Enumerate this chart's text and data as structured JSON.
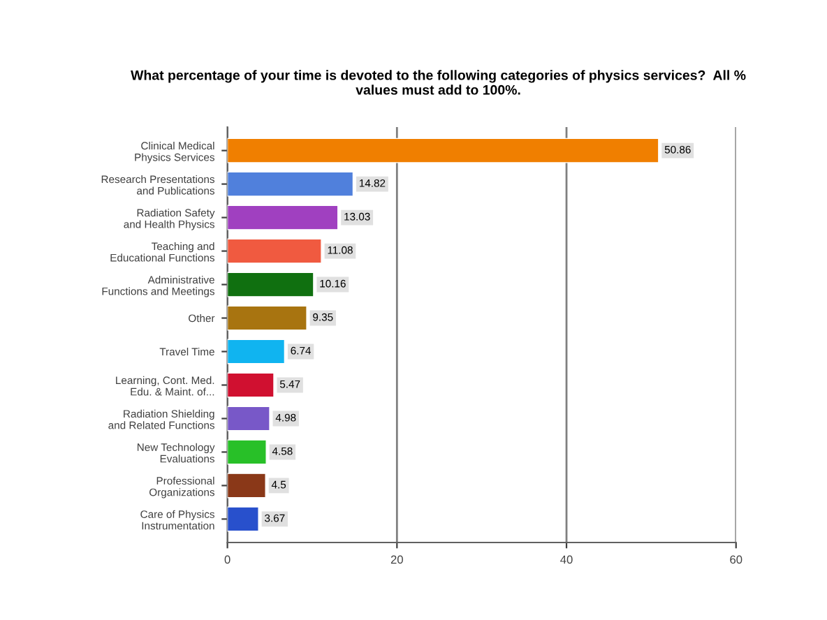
{
  "chart_data": {
    "type": "bar",
    "orientation": "horizontal",
    "title": "What percentage of your time is devoted to the following categories of physics services?  All %\nvalues must add to 100%.",
    "categories": [
      "Clinical Medical\nPhysics Services",
      "Research Presentations\nand Publications",
      "Radiation Safety\nand Health Physics",
      "Teaching and\nEducational Functions",
      "Administrative\nFunctions and Meetings",
      "Other",
      "Travel Time",
      "Learning, Cont. Med.\nEdu. & Maint. of...",
      "Radiation Shielding\nand Related Functions",
      "New Technology\nEvaluations",
      "Professional\nOrganizations",
      "Care of Physics\nInstrumentation"
    ],
    "values": [
      50.86,
      14.82,
      13.03,
      11.08,
      10.16,
      9.35,
      6.74,
      5.47,
      4.98,
      4.58,
      4.5,
      3.67
    ],
    "colors": [
      "#f07f00",
      "#5080dc",
      "#a040c0",
      "#f05a40",
      "#107010",
      "#a87410",
      "#10b4f0",
      "#d01030",
      "#7858c8",
      "#28c028",
      "#8a3818",
      "#2850cc"
    ],
    "xlim": [
      0,
      60
    ],
    "xticks": [
      0,
      20,
      40,
      60
    ],
    "grid": "x",
    "data_labels": true
  }
}
